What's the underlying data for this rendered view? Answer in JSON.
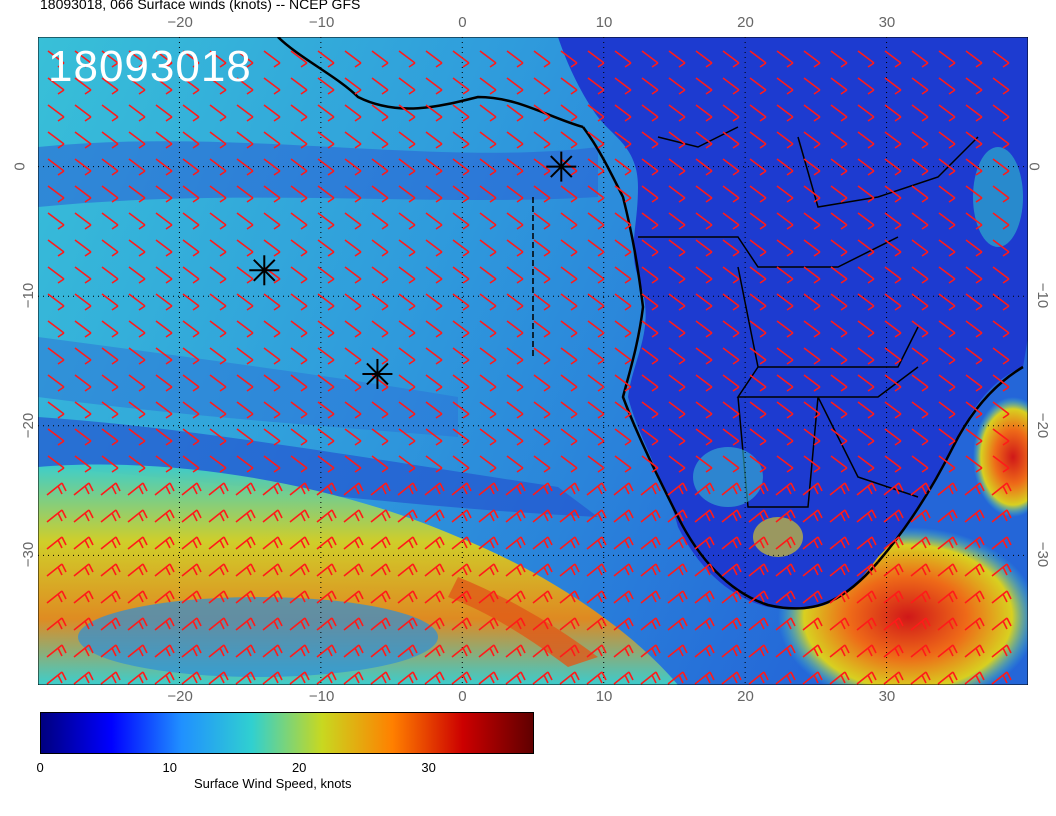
{
  "title": "18093018, 066 Surface winds (knots) -- NCEP GFS",
  "map": {
    "stamp": "18093018",
    "lon_ticks": [
      "−20",
      "−10",
      "0",
      "10",
      "20",
      "30"
    ],
    "lat_ticks": [
      "0",
      "−10",
      "−20",
      "−30"
    ],
    "lon_range": [
      -30,
      40
    ],
    "lat_range": [
      -40,
      10
    ],
    "grid_interval_deg": 10,
    "grid": true,
    "markers": [
      {
        "name": "storm-marker",
        "lon": -14,
        "lat": -8
      },
      {
        "name": "storm-marker",
        "lon": -6,
        "lat": -16
      },
      {
        "name": "storm-marker",
        "lon": 7,
        "lat": 0
      }
    ],
    "colors": {
      "land_dark": "#1a2fb8",
      "ocean_mid": "#2a8fd8",
      "ocean_light": "#3cd0cc",
      "high_yellow": "#d8d020",
      "high_orange": "#e8701a",
      "high_red": "#c8181a",
      "barb": "#ff1a1a",
      "coast": "#000000"
    }
  },
  "colorbar": {
    "ticks": [
      "0",
      "10",
      "20",
      "30"
    ],
    "tick_values": [
      0,
      10,
      20,
      30
    ],
    "range": [
      0,
      38
    ],
    "label": "Surface Wind Speed, knots",
    "colors": [
      "#00007f",
      "#0000ff",
      "#2090ff",
      "#30d0d0",
      "#c8d820",
      "#ff8000",
      "#cc0000",
      "#600000"
    ]
  }
}
